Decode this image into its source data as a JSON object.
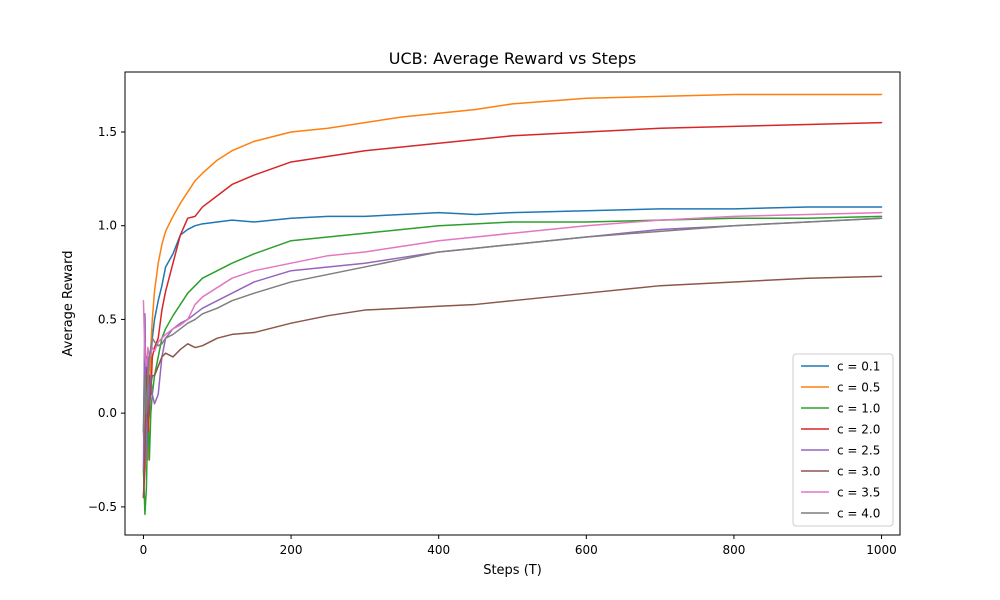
{
  "chart_data": {
    "type": "line",
    "title": "UCB: Average Reward vs Steps",
    "xlabel": "Steps (T)",
    "ylabel": "Average Reward",
    "xlim": [
      -25,
      1025
    ],
    "ylim": [
      -0.65,
      1.82
    ],
    "xticks": [
      0,
      200,
      400,
      600,
      800,
      1000
    ],
    "xtick_labels": [
      "0",
      "200",
      "400",
      "600",
      "800",
      "1000"
    ],
    "yticks": [
      -0.5,
      0.0,
      0.5,
      1.0,
      1.5
    ],
    "ytick_labels": [
      "−0.5",
      "0.0",
      "0.5",
      "1.0",
      "1.5"
    ],
    "grid": false,
    "legend_position": "lower-right",
    "x": [
      0,
      2,
      4,
      6,
      8,
      10,
      12,
      15,
      20,
      25,
      30,
      40,
      50,
      60,
      70,
      80,
      100,
      120,
      150,
      200,
      250,
      300,
      350,
      400,
      450,
      500,
      600,
      700,
      800,
      900,
      1000
    ],
    "series": [
      {
        "name": "c = 0.1",
        "color": "#1f77b4",
        "values": [
          -0.1,
          0.5,
          -0.2,
          0.25,
          0.1,
          0.3,
          0.4,
          0.5,
          0.6,
          0.68,
          0.78,
          0.85,
          0.95,
          0.98,
          1.0,
          1.01,
          1.02,
          1.03,
          1.02,
          1.04,
          1.05,
          1.05,
          1.06,
          1.07,
          1.06,
          1.07,
          1.08,
          1.09,
          1.09,
          1.1,
          1.1
        ]
      },
      {
        "name": "c = 0.5",
        "color": "#ff7f0e",
        "values": [
          -0.1,
          -0.3,
          0.1,
          -0.25,
          0.0,
          0.35,
          0.5,
          0.65,
          0.8,
          0.9,
          0.97,
          1.05,
          1.12,
          1.18,
          1.24,
          1.28,
          1.35,
          1.4,
          1.45,
          1.5,
          1.52,
          1.55,
          1.58,
          1.6,
          1.62,
          1.65,
          1.68,
          1.69,
          1.7,
          1.7,
          1.7
        ]
      },
      {
        "name": "c = 1.0",
        "color": "#2ca02c",
        "values": [
          -0.3,
          -0.54,
          -0.4,
          0.0,
          -0.25,
          0.0,
          0.1,
          0.2,
          0.3,
          0.4,
          0.45,
          0.52,
          0.58,
          0.64,
          0.68,
          0.72,
          0.76,
          0.8,
          0.85,
          0.92,
          0.94,
          0.96,
          0.98,
          1.0,
          1.01,
          1.02,
          1.02,
          1.03,
          1.04,
          1.04,
          1.05
        ]
      },
      {
        "name": "c = 2.0",
        "color": "#d62728",
        "values": [
          -0.45,
          -0.3,
          0.3,
          -0.1,
          0.2,
          0.1,
          0.3,
          0.35,
          0.4,
          0.55,
          0.65,
          0.8,
          0.95,
          1.04,
          1.05,
          1.1,
          1.16,
          1.22,
          1.27,
          1.34,
          1.37,
          1.4,
          1.42,
          1.44,
          1.46,
          1.48,
          1.5,
          1.52,
          1.53,
          1.54,
          1.55
        ]
      },
      {
        "name": "c = 2.5",
        "color": "#9467bd",
        "values": [
          -0.3,
          0.53,
          -0.25,
          0.3,
          0.0,
          0.2,
          0.1,
          0.05,
          0.1,
          0.3,
          0.4,
          0.45,
          0.48,
          0.5,
          0.53,
          0.56,
          0.6,
          0.64,
          0.7,
          0.76,
          0.78,
          0.8,
          0.83,
          0.86,
          0.88,
          0.9,
          0.94,
          0.98,
          1.0,
          1.02,
          1.04
        ]
      },
      {
        "name": "c = 3.0",
        "color": "#8c564b",
        "values": [
          -0.45,
          -0.2,
          0.2,
          -0.05,
          0.0,
          0.15,
          0.2,
          0.2,
          0.25,
          0.3,
          0.32,
          0.3,
          0.34,
          0.37,
          0.35,
          0.36,
          0.4,
          0.42,
          0.43,
          0.48,
          0.52,
          0.55,
          0.56,
          0.57,
          0.58,
          0.6,
          0.64,
          0.68,
          0.7,
          0.72,
          0.73
        ]
      },
      {
        "name": "c = 3.5",
        "color": "#e377c2",
        "values": [
          0.6,
          0.3,
          0.25,
          0.35,
          0.3,
          0.32,
          0.35,
          0.33,
          0.38,
          0.4,
          0.42,
          0.45,
          0.47,
          0.5,
          0.58,
          0.62,
          0.67,
          0.72,
          0.76,
          0.8,
          0.84,
          0.86,
          0.89,
          0.92,
          0.94,
          0.96,
          1.0,
          1.03,
          1.05,
          1.06,
          1.07
        ]
      },
      {
        "name": "c = 4.0",
        "color": "#7f7f7f",
        "values": [
          -0.1,
          0.2,
          0.0,
          0.15,
          0.3,
          0.35,
          0.4,
          0.38,
          0.36,
          0.37,
          0.4,
          0.42,
          0.45,
          0.48,
          0.5,
          0.53,
          0.56,
          0.6,
          0.64,
          0.7,
          0.74,
          0.78,
          0.82,
          0.86,
          0.88,
          0.9,
          0.94,
          0.97,
          1.0,
          1.02,
          1.04
        ]
      }
    ]
  }
}
